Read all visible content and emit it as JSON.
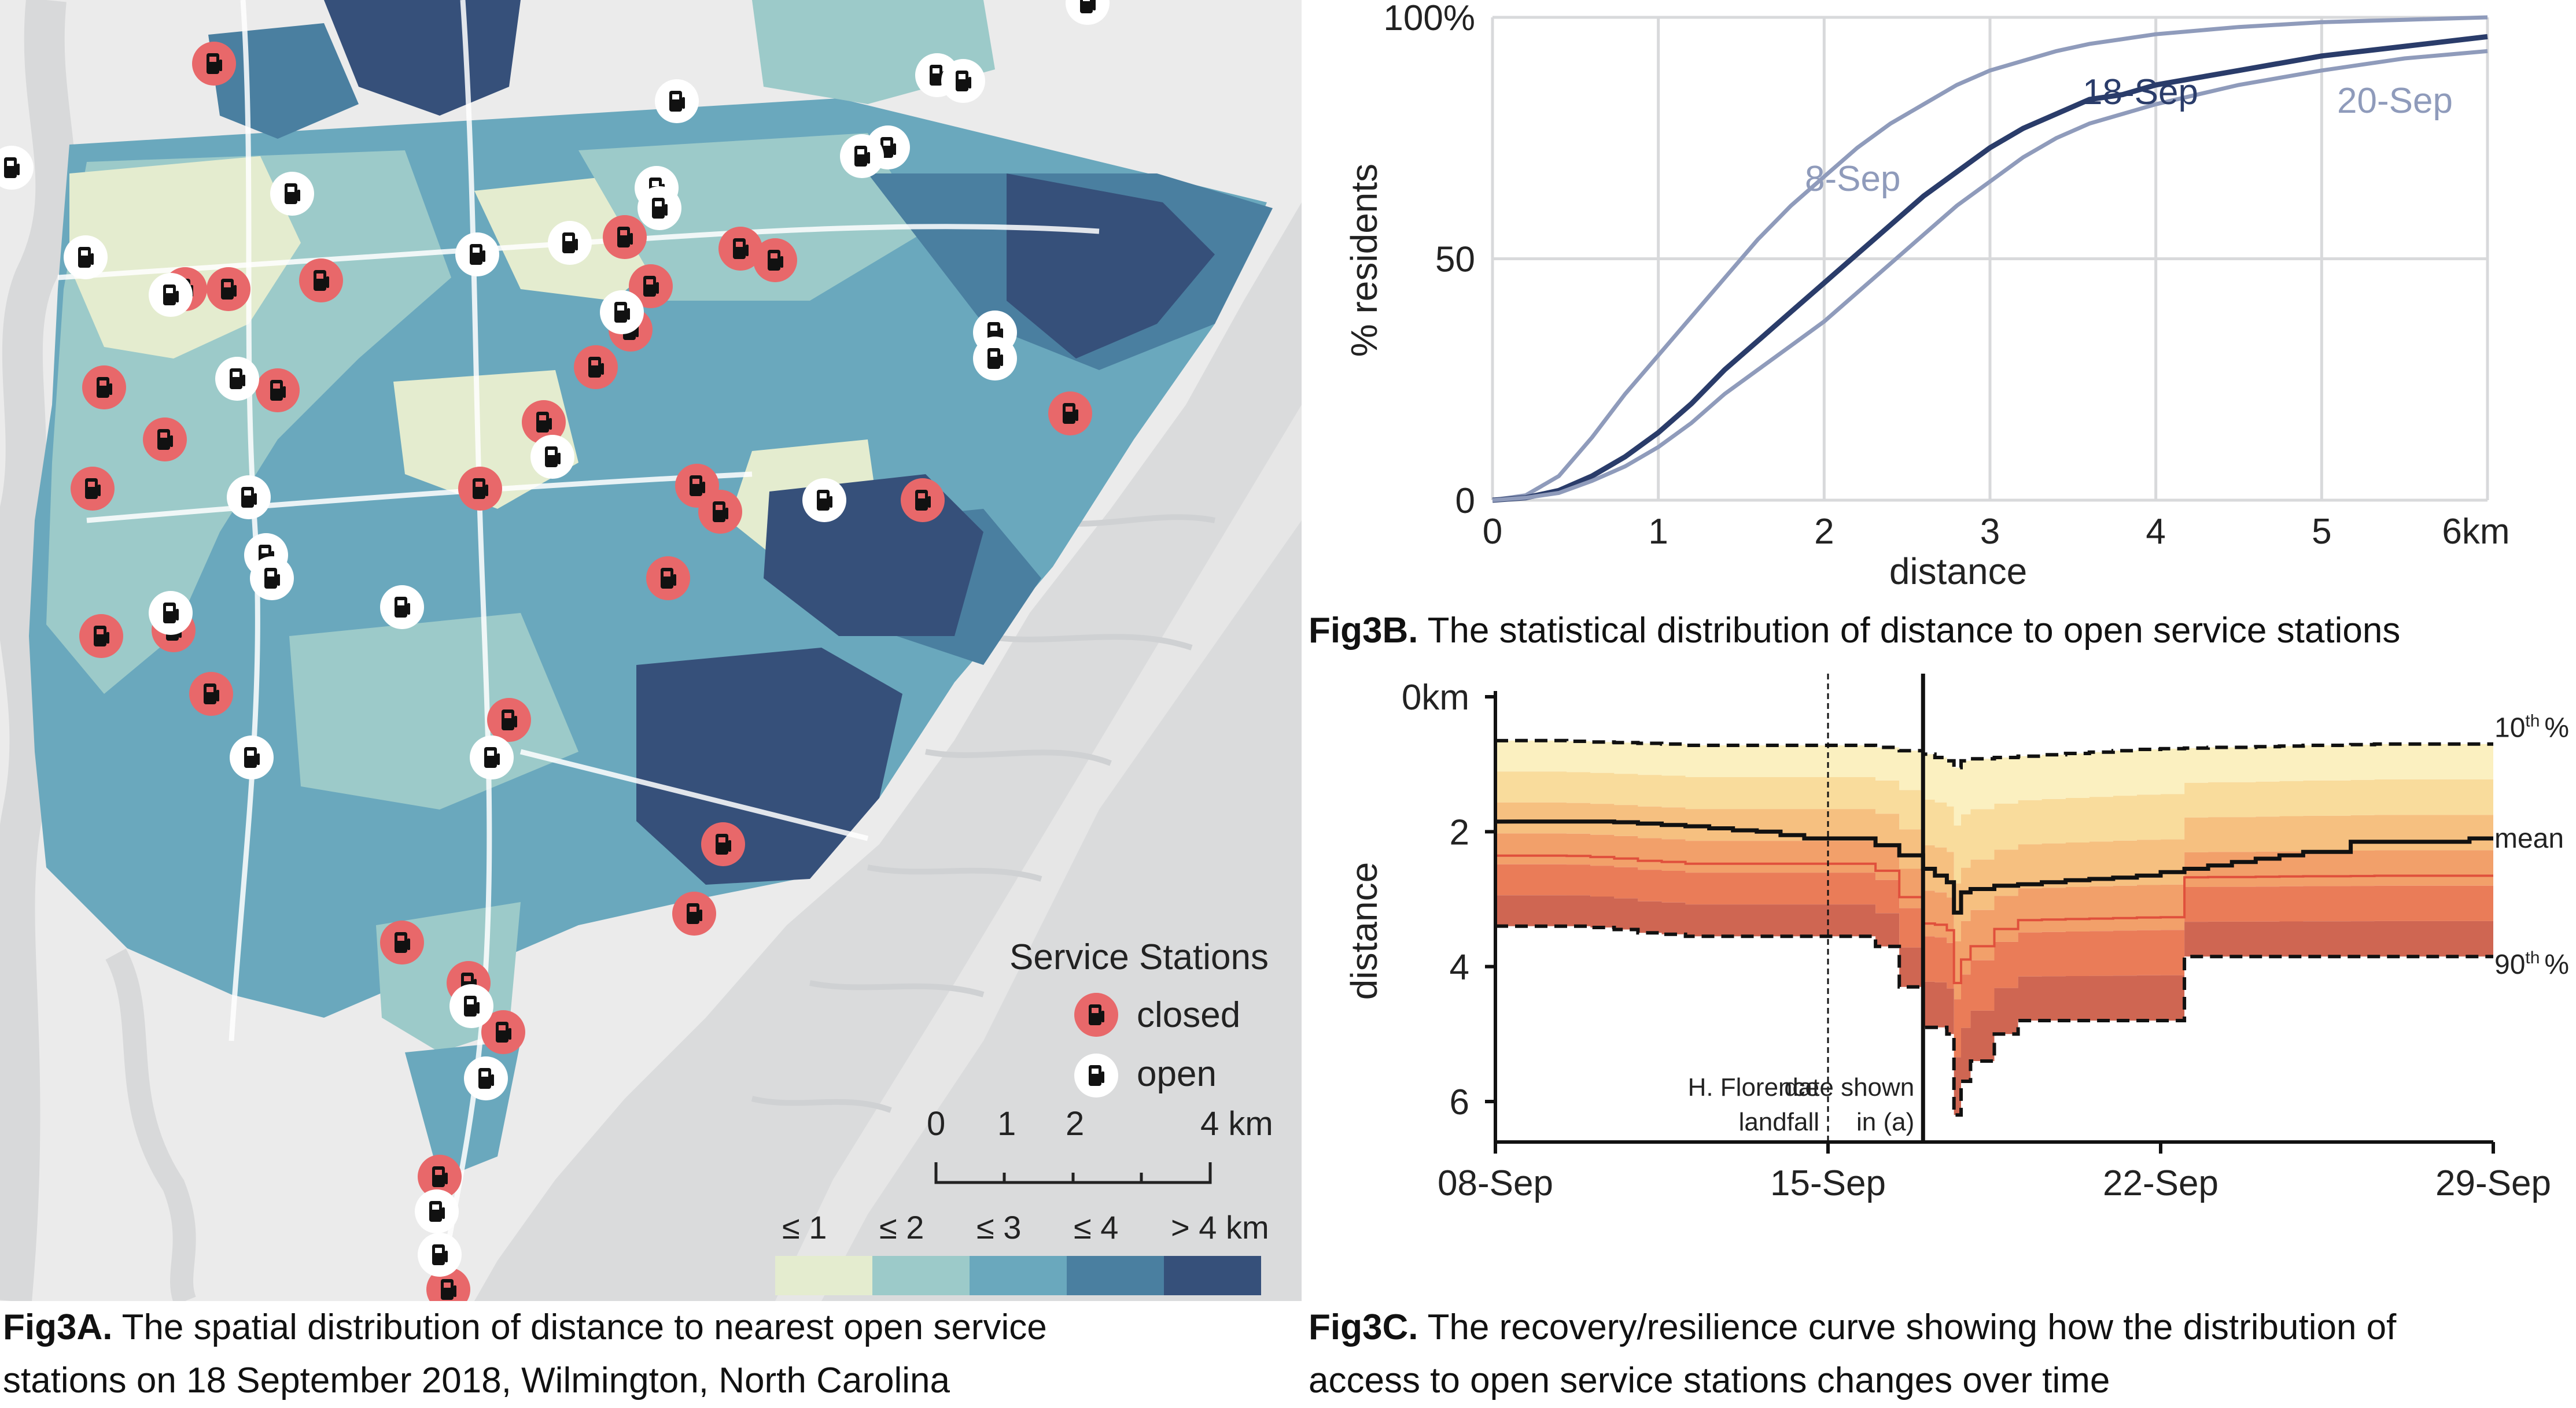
{
  "fig_a": {
    "caption_prefix": "Fig3A.",
    "caption_line1": "The spatial distribution of distance to nearest open service",
    "caption_line2": "stations on 18 September 2018, Wilmington, North Carolina",
    "legend": {
      "title": "Service Stations",
      "closed": "closed",
      "open": "open",
      "closed_color": "#e8686a",
      "open_color": "#ffffff"
    },
    "scalebar": {
      "ticks": [
        "0",
        "1",
        "2",
        "4 km"
      ]
    },
    "color_legend": [
      {
        "label": "≤ 1",
        "color": "#e4eccf"
      },
      {
        "label": "≤ 2",
        "color": "#9ccac9"
      },
      {
        "label": "≤ 3",
        "color": "#6aa8bd"
      },
      {
        "label": "≤ 4",
        "color": "#4a7fa0"
      },
      {
        "label": "> 4 km",
        "color": "#36507a"
      }
    ]
  },
  "fig_b": {
    "caption_prefix": "Fig3B.",
    "caption_text": "The statistical distribution of distance to open service stations"
  },
  "fig_c": {
    "caption_prefix": "Fig3C.",
    "caption_line1": "The recovery/resilience curve showing how the distribution of",
    "caption_line2": "access to open service stations changes over time"
  },
  "chart_data": [
    {
      "type": "line",
      "xlabel": "distance",
      "ylabel": "% residents",
      "x_ticks": [
        "0",
        "1",
        "2",
        "3",
        "4",
        "5",
        "6km"
      ],
      "y_ticks": [
        "0",
        "50",
        "100%"
      ],
      "xlim": [
        0,
        6
      ],
      "ylim": [
        0,
        100
      ],
      "grid": true,
      "series": [
        {
          "name": "8-Sep",
          "color": "#8f9bbb",
          "x": [
            0,
            0.2,
            0.4,
            0.6,
            0.8,
            1.0,
            1.2,
            1.4,
            1.6,
            1.8,
            2.0,
            2.2,
            2.4,
            2.6,
            2.8,
            3.0,
            3.2,
            3.4,
            3.6,
            3.8,
            4.0,
            4.5,
            5.0,
            5.5,
            6.0
          ],
          "y": [
            0,
            1,
            5,
            13,
            22,
            30,
            38,
            46,
            54,
            61,
            67,
            73,
            78,
            82,
            86,
            89,
            91,
            93,
            94.5,
            95.5,
            96.5,
            98,
            99,
            99.5,
            100
          ]
        },
        {
          "name": "18-Sep",
          "color": "#2a3c6a",
          "x": [
            0,
            0.2,
            0.4,
            0.6,
            0.8,
            1.0,
            1.2,
            1.4,
            1.6,
            1.8,
            2.0,
            2.2,
            2.4,
            2.6,
            2.8,
            3.0,
            3.2,
            3.4,
            3.6,
            3.8,
            4.0,
            4.5,
            5.0,
            5.5,
            6.0
          ],
          "y": [
            0,
            0.5,
            2,
            5,
            9,
            14,
            20,
            27,
            33,
            39,
            45,
            51,
            57,
            63,
            68,
            73,
            77,
            80,
            83,
            84,
            86,
            89,
            92,
            94,
            96
          ]
        },
        {
          "name": "20-Sep",
          "color": "#8f9bbb",
          "x": [
            0,
            0.2,
            0.4,
            0.6,
            0.8,
            1.0,
            1.2,
            1.4,
            1.6,
            1.8,
            2.0,
            2.2,
            2.4,
            2.6,
            2.8,
            3.0,
            3.2,
            3.4,
            3.6,
            3.8,
            4.0,
            4.5,
            5.0,
            5.5,
            6.0
          ],
          "y": [
            0,
            0.5,
            1.5,
            4,
            7,
            11,
            16,
            22,
            27,
            32,
            37,
            43,
            49,
            55,
            61,
            66,
            71,
            75,
            78,
            80,
            82,
            86,
            89,
            91.5,
            93
          ]
        }
      ]
    },
    {
      "type": "area",
      "ylabel": "distance",
      "x_ticks": [
        "08-Sep",
        "15-Sep",
        "22-Sep",
        "29-Sep"
      ],
      "y_ticks": [
        "0km",
        "2",
        "4",
        "6"
      ],
      "ylim": [
        0,
        6.6
      ],
      "y_inverted": true,
      "percentile_labels": {
        "p10": "10",
        "mean": "mean",
        "p90": "90",
        "suffix": "th",
        "percent": "%"
      },
      "annotations": [
        {
          "label_line1": "H. Florence",
          "label_line2": "landfall",
          "day": 14
        },
        {
          "label_line1": "date shown",
          "label_line2": "in (a)",
          "day": 18
        }
      ],
      "band_colors": [
        "#fbf0c0",
        "#f9dc9c",
        "#f6c080",
        "#f2a06a",
        "#ea7c58",
        "#cf6652"
      ],
      "days": [
        0,
        1,
        2,
        3,
        4,
        5,
        6,
        7,
        8,
        9,
        10,
        11,
        12,
        13,
        14,
        15,
        16,
        17,
        18,
        18.5,
        19,
        19.3,
        19.6,
        20,
        21,
        22,
        23,
        24,
        25,
        26,
        27,
        28,
        29,
        30,
        31,
        32,
        33,
        34,
        35,
        36,
        37,
        38,
        39,
        40,
        41,
        42
      ],
      "p10": [
        0.65,
        0.65,
        0.65,
        0.66,
        0.67,
        0.68,
        0.69,
        0.7,
        0.72,
        0.72,
        0.72,
        0.72,
        0.72,
        0.72,
        0.72,
        0.72,
        0.75,
        0.8,
        0.85,
        0.9,
        0.95,
        1.05,
        0.95,
        0.92,
        0.9,
        0.88,
        0.86,
        0.84,
        0.82,
        0.8,
        0.78,
        0.77,
        0.76,
        0.75,
        0.75,
        0.74,
        0.73,
        0.72,
        0.72,
        0.71,
        0.7,
        0.7,
        0.7,
        0.7,
        0.7,
        0.7
      ],
      "mean": [
        1.85,
        1.85,
        1.85,
        1.85,
        1.85,
        1.86,
        1.88,
        1.9,
        1.92,
        1.95,
        1.98,
        2.0,
        2.05,
        2.1,
        2.1,
        2.1,
        2.2,
        2.35,
        2.55,
        2.65,
        2.75,
        3.2,
        2.9,
        2.85,
        2.8,
        2.78,
        2.75,
        2.72,
        2.7,
        2.68,
        2.65,
        2.6,
        2.55,
        2.5,
        2.45,
        2.4,
        2.35,
        2.3,
        2.3,
        2.15,
        2.15,
        2.15,
        2.15,
        2.15,
        2.1,
        2.1
      ],
      "p90": [
        3.4,
        3.4,
        3.4,
        3.4,
        3.42,
        3.45,
        3.5,
        3.52,
        3.55,
        3.55,
        3.55,
        3.55,
        3.55,
        3.55,
        3.55,
        3.55,
        3.7,
        4.3,
        4.9,
        4.9,
        5.0,
        6.2,
        5.7,
        5.4,
        5.0,
        4.8,
        4.8,
        4.8,
        4.8,
        4.8,
        4.8,
        4.8,
        3.85,
        3.85,
        3.85,
        3.85,
        3.85,
        3.85,
        3.85,
        3.85,
        3.85,
        3.85,
        3.85,
        3.85,
        3.85,
        3.85
      ]
    }
  ]
}
